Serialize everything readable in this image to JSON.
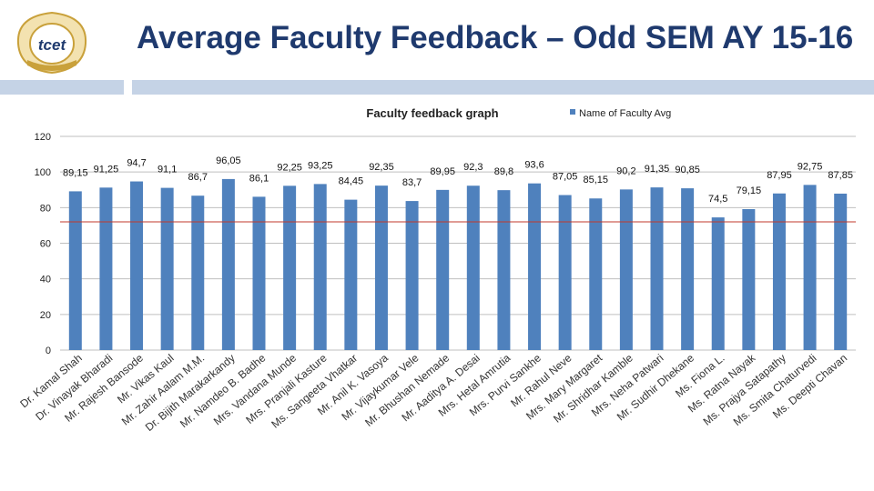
{
  "slide": {
    "title": "Average Faculty Feedback – Odd SEM AY 15-16",
    "logo_text": "tcet"
  },
  "chart_data": {
    "type": "bar",
    "title": "Faculty feedback graph",
    "legend": {
      "label": "Name of Faculty  Avg",
      "placement": "top-right",
      "color": "#4f81bd"
    },
    "ylim": [
      0,
      120
    ],
    "yticks": [
      0,
      20,
      40,
      60,
      80,
      100,
      120
    ],
    "grid": true,
    "reference_line": {
      "value": 72,
      "color": "#c0392b"
    },
    "bar_color": "#4f81bd",
    "categories": [
      "Dr. Kamal Shah",
      "Dr. Vinayak Bharadi",
      "Mr. Rajesh Bansode",
      "Mr. Vikas Kaul",
      "Mr. Zahir Aalam M.M.",
      "Dr. Bijith Marakarkandy",
      "Mr. Namdeo B. Badhe",
      "Mrs. Vandana Munde",
      "Mrs. Pranjali Kasture",
      "Ms. Sangeeta Vhatkar",
      "Mr. Anil K. Vasoya",
      "Mr. Vijaykumar Vele",
      "Mr. Bhushan Nemade",
      "Mr. Aaditya A. Desai",
      "Mrs. Hetal Amrutia",
      "Mrs. Purvi Sankhe",
      "Mr. Rahul Neve",
      "Mrs. Mary Margaret",
      "Mr. Shridhar Kamble",
      "Mrs. Neha Patwari",
      "Mr. Sudhir Dhekane",
      "Ms. Fiona L.",
      "Ms. Ratna Nayak",
      "Ms. Prajya Satapathy",
      "Ms. Smita Chaturvedi",
      "Ms. Deepti Chavan"
    ],
    "values": [
      89.15,
      91.25,
      94.7,
      91.1,
      86.7,
      96.05,
      86.1,
      92.25,
      93.25,
      84.45,
      92.35,
      83.7,
      89.95,
      92.3,
      89.8,
      93.6,
      87.05,
      85.15,
      90.2,
      91.35,
      90.85,
      74.5,
      79.15,
      87.95,
      92.75,
      87.85
    ],
    "labels": [
      "89,15",
      "91,25",
      "94,7",
      "91,1",
      "86,7",
      "96,05",
      "86,1",
      "92,25",
      "93,25",
      "84,45",
      "92,35",
      "83,7",
      "89,95",
      "92,3",
      "89,8",
      "93,6",
      "87,05",
      "85,15",
      "90,2",
      "91,35",
      "90,85",
      "74,5",
      "79,15",
      "87,95",
      "92,75",
      "87,85"
    ]
  }
}
